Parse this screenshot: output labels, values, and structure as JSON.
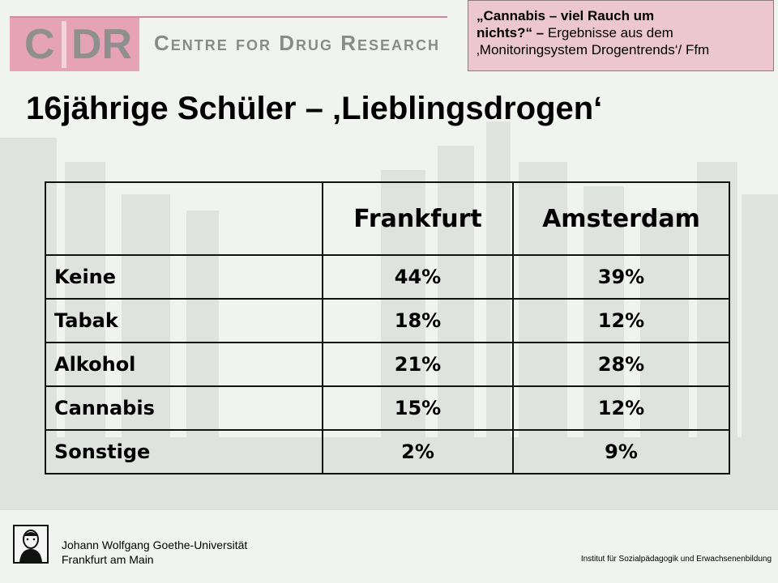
{
  "logo": {
    "letters_left": "C",
    "letters_right": "DR",
    "name": "Centre for Drug Research"
  },
  "callout": {
    "line1_bold": "„Cannabis – viel Rauch um",
    "line2_bold": "nichts?“ – ",
    "line2_rest": "Ergebnisse aus dem",
    "line3": "‚Monitoringsystem Drogentrends‘/ Ffm"
  },
  "title": "16jährige Schüler – ‚Lieblingsdrogen‘",
  "table": {
    "headers": [
      "",
      "Frankfurt",
      "Amsterdam"
    ],
    "rows": [
      {
        "label": "Keine",
        "frankfurt": "44%",
        "amsterdam": "39%"
      },
      {
        "label": "Tabak",
        "frankfurt": "18%",
        "amsterdam": "12%"
      },
      {
        "label": "Alkohol",
        "frankfurt": "21%",
        "amsterdam": "28%"
      },
      {
        "label": "Cannabis",
        "frankfurt": "15%",
        "amsterdam": "12%"
      },
      {
        "label": "Sonstige",
        "frankfurt": "2%",
        "amsterdam": "9%"
      }
    ]
  },
  "footer": {
    "university_line1": "Johann Wolfgang Goethe-Universität",
    "university_line2": "Frankfurt am Main",
    "institute": "Institut für Sozialpädagogik und Erwachsenenbildung"
  },
  "colors": {
    "logo_pink": "#e6a3b8",
    "callout_pink": "#ecc6d0",
    "logo_gray": "#8a8a8a"
  }
}
